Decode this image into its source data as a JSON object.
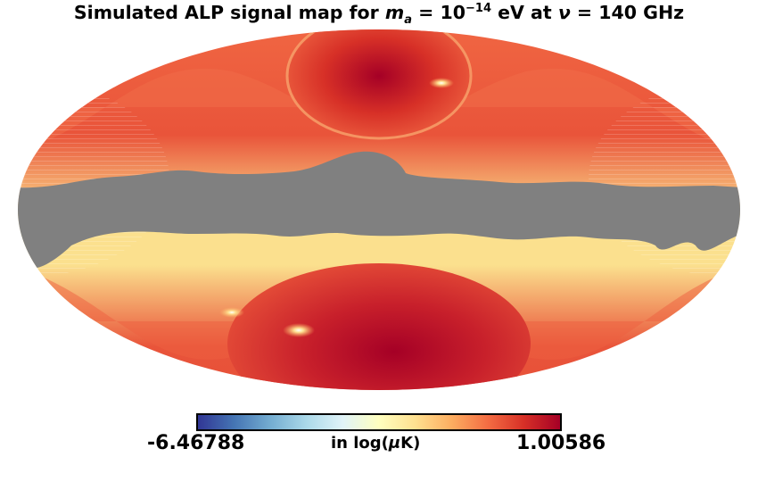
{
  "title": {
    "prefix": "Simulated ALP signal map for ",
    "mass_symbol": "m",
    "mass_subscript": "a",
    "equals": " = ",
    "mass_base": " 10",
    "mass_exponent": "−14",
    "mass_unit": " eV at ",
    "freq_symbol": "ν",
    "freq_value": " = 140 GHz"
  },
  "colorbar": {
    "min_label": "-6.46788",
    "max_label": "1.00586",
    "unit_prefix": "in log(",
    "unit_symbol": "μ",
    "unit_suffix": "K)",
    "stops": [
      "#313695",
      "#4575b4",
      "#74add1",
      "#abd9e9",
      "#e0f3f8",
      "#ffffbf",
      "#fee090",
      "#fdae61",
      "#f46d43",
      "#d73027",
      "#a50026"
    ]
  },
  "map": {
    "projection": "mollweide",
    "mask_color": "#808080",
    "background": "#ffffff"
  }
}
